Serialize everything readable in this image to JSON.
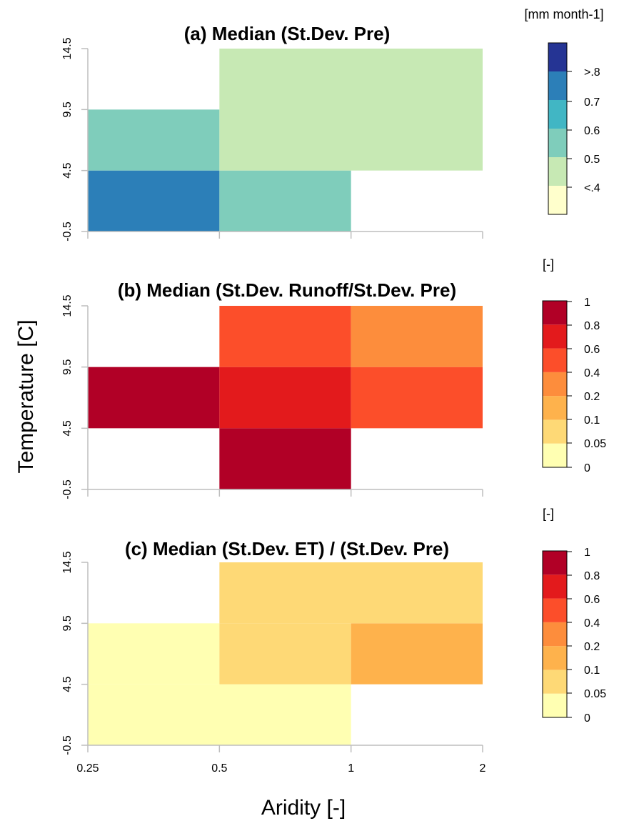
{
  "figure": {
    "ylabel": "Temperature [C]",
    "xlabel": "Aridity [-]",
    "x_ticks": [
      "0.25",
      "0.5",
      "1",
      "2"
    ],
    "y_ticks": [
      "-0.5",
      "4.5",
      "9.5",
      "14.5"
    ]
  },
  "chart_data": [
    {
      "type": "heatmap",
      "title": "(a) Median (St.Dev. Pre)",
      "xlabel": "Aridity [-]",
      "ylabel": "Temperature [C]",
      "x_edges": [
        0.25,
        0.5,
        1,
        2
      ],
      "y_edges": [
        -0.5,
        4.5,
        9.5,
        14.5
      ],
      "x_scale": "log",
      "cells": [
        {
          "x": [
            0.25,
            0.5
          ],
          "y": [
            -0.5,
            4.5
          ],
          "bin": ">.7-.8",
          "color": "#2c7fb8"
        },
        {
          "x": [
            0.5,
            1
          ],
          "y": [
            -0.5,
            4.5
          ],
          "bin": ".5-.6",
          "color": "#7fcdbb"
        },
        {
          "x": [
            0.25,
            0.5
          ],
          "y": [
            4.5,
            9.5
          ],
          "bin": ".5-.6",
          "color": "#7fcdbb"
        },
        {
          "x": [
            0.5,
            2
          ],
          "y": [
            4.5,
            14.5
          ],
          "bin": ".4-.5",
          "color": "#c7e9b4"
        }
      ],
      "colorbar": {
        "unit": "[mm month-1]",
        "labels": [
          ">.8",
          "0.7",
          "0.6",
          "0.5",
          "<.4"
        ],
        "colors": [
          "#ffffcc",
          "#c7e9b4",
          "#7fcdbb",
          "#41b6c4",
          "#2c7fb8",
          "#253494"
        ]
      }
    },
    {
      "type": "heatmap",
      "title": "(b) Median (St.Dev. Runoff/St.Dev. Pre)",
      "xlabel": "Aridity [-]",
      "ylabel": "Temperature [C]",
      "x_edges": [
        0.25,
        0.5,
        1,
        2
      ],
      "y_edges": [
        -0.5,
        4.5,
        9.5,
        14.5
      ],
      "x_scale": "log",
      "cells": [
        {
          "x": [
            0.5,
            1
          ],
          "y": [
            -0.5,
            4.5
          ],
          "bin": "0.8-1",
          "color": "#b10026"
        },
        {
          "x": [
            0.25,
            0.5
          ],
          "y": [
            4.5,
            9.5
          ],
          "bin": "0.8-1",
          "color": "#b10026"
        },
        {
          "x": [
            0.5,
            1
          ],
          "y": [
            4.5,
            9.5
          ],
          "bin": "0.6-0.8",
          "color": "#e31a1c"
        },
        {
          "x": [
            1,
            2
          ],
          "y": [
            4.5,
            9.5
          ],
          "bin": "0.4-0.6",
          "color": "#fc4e2a"
        },
        {
          "x": [
            0.5,
            1
          ],
          "y": [
            9.5,
            14.5
          ],
          "bin": "0.4-0.6",
          "color": "#fc4e2a"
        },
        {
          "x": [
            1,
            2
          ],
          "y": [
            9.5,
            14.5
          ],
          "bin": "0.2-0.4",
          "color": "#fd8d3c"
        }
      ],
      "colorbar": {
        "unit": "[-]",
        "labels": [
          "1",
          "0.8",
          "0.6",
          "0.4",
          "0.2",
          "0.1",
          "0.05",
          "0"
        ],
        "colors": [
          "#ffffb2",
          "#fed976",
          "#feb24c",
          "#fd8d3c",
          "#fc4e2a",
          "#e31a1c",
          "#b10026"
        ]
      }
    },
    {
      "type": "heatmap",
      "title": "(c) Median (St.Dev. ET) / (St.Dev. Pre)",
      "xlabel": "Aridity [-]",
      "ylabel": "Temperature [C]",
      "x_edges": [
        0.25,
        0.5,
        1,
        2
      ],
      "y_edges": [
        -0.5,
        4.5,
        9.5,
        14.5
      ],
      "x_scale": "log",
      "cells": [
        {
          "x": [
            0.25,
            1
          ],
          "y": [
            -0.5,
            4.5
          ],
          "bin": "0-0.05",
          "color": "#ffffb2"
        },
        {
          "x": [
            0.25,
            0.5
          ],
          "y": [
            4.5,
            9.5
          ],
          "bin": "0-0.05",
          "color": "#ffffb2"
        },
        {
          "x": [
            0.5,
            1
          ],
          "y": [
            4.5,
            9.5
          ],
          "bin": "0.05-0.1",
          "color": "#fed976"
        },
        {
          "x": [
            1,
            2
          ],
          "y": [
            4.5,
            9.5
          ],
          "bin": "0.1-0.2",
          "color": "#feb24c"
        },
        {
          "x": [
            0.5,
            2
          ],
          "y": [
            9.5,
            14.5
          ],
          "bin": "0.05-0.1",
          "color": "#fed976"
        }
      ],
      "colorbar": {
        "unit": "[-]",
        "labels": [
          "1",
          "0.8",
          "0.6",
          "0.4",
          "0.2",
          "0.1",
          "0.05",
          "0"
        ],
        "colors": [
          "#ffffb2",
          "#fed976",
          "#feb24c",
          "#fd8d3c",
          "#fc4e2a",
          "#e31a1c",
          "#b10026"
        ]
      }
    }
  ]
}
